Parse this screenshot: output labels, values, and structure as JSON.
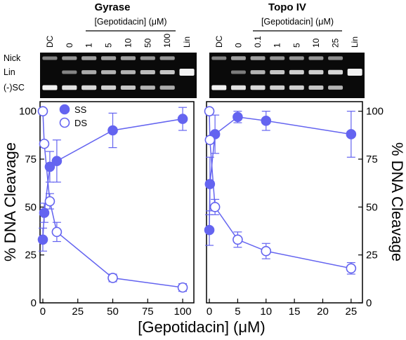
{
  "colors": {
    "series_color": "#6464f0",
    "gel_background": "#0a0a0a",
    "band_color": "#f2f2f2"
  },
  "gels": [
    {
      "title": "Gyrase",
      "conc_label": "[Gepotidacin] (μM)",
      "lanes": [
        "DC",
        "0",
        "1",
        "5",
        "10",
        "50",
        "100",
        "Lin"
      ],
      "bands": [
        "Nick",
        "Lin",
        "(-)SC"
      ]
    },
    {
      "title": "Topo IV",
      "conc_label": "[Gepotidacin] (μM)",
      "lanes": [
        "DC",
        "0",
        "0.1",
        "1",
        "5",
        "10",
        "25",
        "Lin"
      ]
    }
  ],
  "chart_data": [
    {
      "type": "scatter",
      "panel": "Gyrase",
      "xlabel": "[Gepotidacin] (μM)",
      "ylabel": "% DNA Cleavage",
      "xlim": [
        -2,
        108
      ],
      "ylim": [
        0,
        105
      ],
      "xticks": [
        "0",
        "25",
        "50",
        "75",
        "100"
      ],
      "yticks": [
        "0",
        "25",
        "50",
        "75",
        "100"
      ],
      "legend": {
        "position": "top-left",
        "entries": [
          "SS",
          "DS"
        ]
      },
      "series": [
        {
          "name": "SS",
          "marker": "filled-circle",
          "x": [
            0,
            1,
            5,
            10,
            50,
            100
          ],
          "y": [
            33,
            47,
            71,
            74,
            90,
            96
          ],
          "err": [
            6,
            5,
            8,
            11,
            9,
            6
          ]
        },
        {
          "name": "DS",
          "marker": "open-circle",
          "x": [
            0,
            1,
            5,
            10,
            50,
            100
          ],
          "y": [
            100,
            83,
            53,
            37,
            13,
            8
          ],
          "err": [
            0,
            0,
            4,
            5,
            2,
            2
          ]
        }
      ]
    },
    {
      "type": "scatter",
      "panel": "Topo IV",
      "xlabel": "[Gepotidacin] (μM)",
      "ylabel": "% DNA Cleavage",
      "xlim": [
        -0.5,
        27
      ],
      "ylim": [
        0,
        105
      ],
      "xticks": [
        "0",
        "5",
        "10",
        "15",
        "20",
        "25"
      ],
      "yticks": [
        "0",
        "25",
        "50",
        "75",
        "100"
      ],
      "series": [
        {
          "name": "SS",
          "marker": "filled-circle",
          "x": [
            0,
            0.1,
            1,
            5,
            10,
            25
          ],
          "y": [
            38,
            62,
            88,
            97,
            95,
            88
          ],
          "err": [
            8,
            14,
            10,
            3,
            5,
            12
          ]
        },
        {
          "name": "DS",
          "marker": "open-circle",
          "x": [
            0,
            0.1,
            1,
            5,
            10,
            25
          ],
          "y": [
            100,
            85,
            50,
            33,
            27,
            18
          ],
          "err": [
            0,
            0,
            4,
            4,
            4,
            3
          ]
        }
      ]
    }
  ]
}
